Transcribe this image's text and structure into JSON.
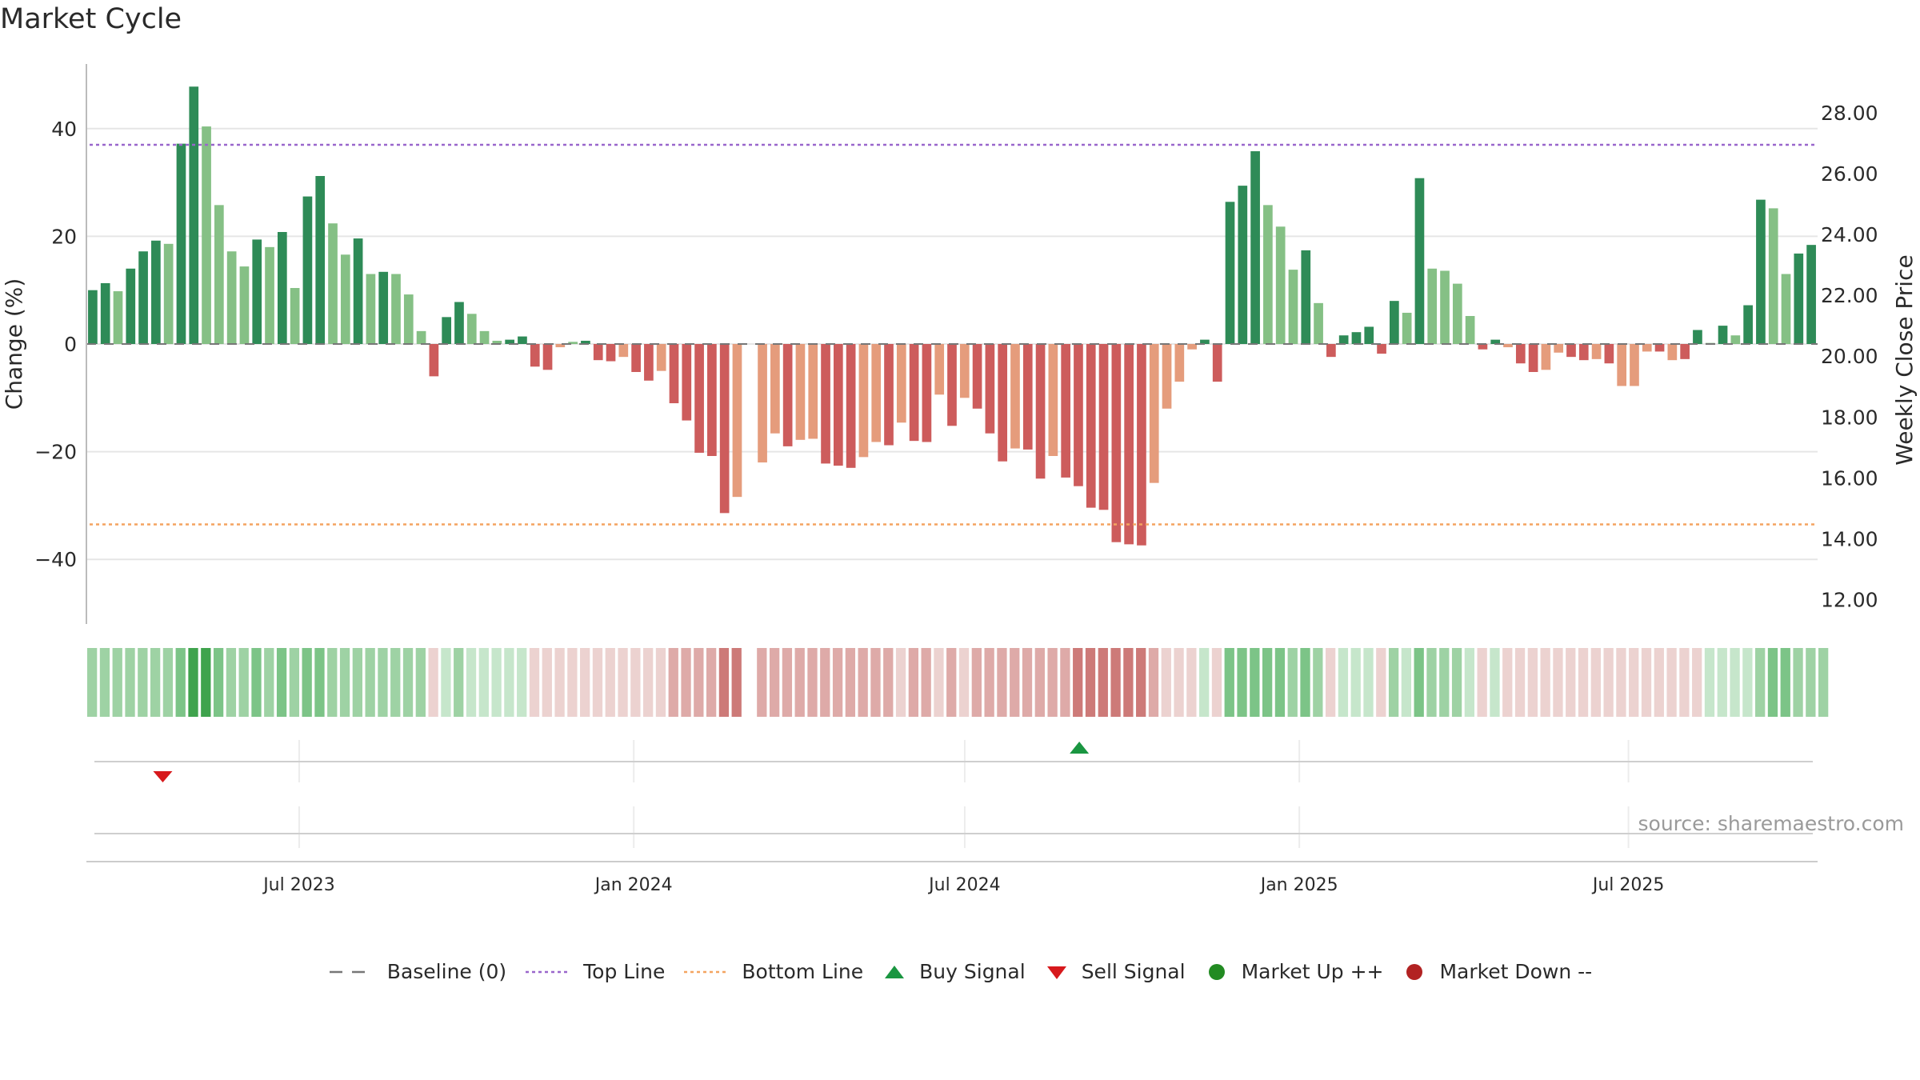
{
  "title": "Market Cycle",
  "source": "source: sharemaestro.com",
  "colors": {
    "up_strong": "#2e8b57",
    "up_light": "#85c085",
    "down_strong": "#cd5c5c",
    "down_light": "#e59c7c",
    "top_line": "#9966cc",
    "bottom_line": "#f4a460",
    "baseline": "#777777",
    "buy": "#1a9641",
    "sell": "#d7191c",
    "market_up": "#228b22",
    "market_down": "#b22222",
    "grid": "#e6e6e6",
    "axis": "#bbbbbb"
  },
  "legend": [
    {
      "label": "Baseline (0)",
      "icon": "dash-line",
      "color": "#777777"
    },
    {
      "label": "Top Line",
      "icon": "dotted-line",
      "color": "#9966cc"
    },
    {
      "label": "Bottom Line",
      "icon": "dotted-line",
      "color": "#f4a460"
    },
    {
      "label": "Buy Signal",
      "icon": "triangle-up",
      "color": "#1a9641"
    },
    {
      "label": "Sell Signal",
      "icon": "triangle-down",
      "color": "#d7191c"
    },
    {
      "label": "Market Up ++",
      "icon": "circle",
      "color": "#228b22"
    },
    {
      "label": "Market Down --",
      "icon": "circle",
      "color": "#b22222"
    }
  ],
  "chart_data": {
    "type": "bar",
    "ylabel": "Change (%)",
    "y2label": "Weekly Close Price",
    "ylim": [
      -52,
      52
    ],
    "yticks": [
      40,
      20,
      0,
      -20,
      -40
    ],
    "ytick_labels": [
      "40",
      "20",
      "0",
      "−20",
      "−40"
    ],
    "y2lim": [
      11.2,
      29.6
    ],
    "y2ticks": [
      28.0,
      26.0,
      24.0,
      22.0,
      20.0,
      18.0,
      16.0,
      14.0,
      12.0
    ],
    "y2tick_labels": [
      "28.00",
      "26.00",
      "24.00",
      "22.00",
      "20.00",
      "18.00",
      "16.00",
      "14.00",
      "12.00"
    ],
    "top_line": 37,
    "bottom_line": -33.5,
    "x_start": "2023-03-06",
    "x_end": "2025-10-13",
    "xticks": [
      {
        "date": "2023-07-01",
        "label": "Jul 2023"
      },
      {
        "date": "2024-01-01",
        "label": "Jan 2024"
      },
      {
        "date": "2024-07-01",
        "label": "Jul 2024"
      },
      {
        "date": "2025-01-01",
        "label": "Jan 2025"
      },
      {
        "date": "2025-07-01",
        "label": "Jul 2025"
      }
    ],
    "grid": true,
    "legend_position": "bottom",
    "series": [
      {
        "values": [
          10,
          11.3,
          9.8,
          14,
          17.2,
          19.2,
          18.6,
          37.2,
          47.8,
          40.4,
          25.8,
          17.2,
          14.4,
          19.4,
          18,
          20.8,
          10.4,
          27.4,
          31.2,
          22.4,
          16.6,
          19.6,
          13,
          13.4,
          13,
          9.2,
          2.4,
          -6,
          5,
          7.8,
          5.6,
          2.4,
          0.6,
          0.8,
          1.4,
          -4.2,
          -4.8,
          -0.6,
          0.4,
          0.6,
          -3,
          -3.2,
          -2.4,
          -5.2,
          -6.8,
          -5,
          -11,
          -14.2,
          -20.2,
          -20.8,
          -31.4,
          -28.4,
          null,
          -22,
          -16.6,
          -19,
          -17.8,
          -17.6,
          -22.2,
          -22.6,
          -23,
          -21,
          -18.2,
          -18.8,
          -14.6,
          -18,
          -18.2,
          -9.4,
          -15.2,
          -10,
          -12,
          -16.6,
          -21.8,
          -19.4,
          -19.6,
          -25,
          -20.8,
          -24.8,
          -26.4,
          -30.4,
          -30.8,
          -36.8,
          -37.2,
          -37.4,
          -25.8,
          -12,
          -7,
          -1,
          0.8,
          -7,
          26.4,
          29.4,
          35.8,
          25.8,
          21.8,
          13.8,
          17.4,
          7.6,
          -2.4,
          1.6,
          2.2,
          3.2,
          -1.8,
          8,
          5.8,
          30.8,
          14,
          13.6,
          11.2,
          5.2,
          -1,
          0.8,
          -0.6,
          -3.6,
          -5.2,
          -4.8,
          -1.6,
          -2.4,
          -3,
          -2.8,
          -3.6,
          -7.8,
          -7.8,
          -1.4,
          -1.4,
          -3,
          -2.8,
          2.6,
          0.2,
          3.4,
          1.6,
          7.2,
          26.8,
          25.2,
          13,
          16.8,
          18.4
        ],
        "shades": [
          "s",
          "s",
          "l",
          "s",
          "s",
          "s",
          "l",
          "s",
          "s",
          "l",
          "l",
          "l",
          "l",
          "s",
          "l",
          "s",
          "l",
          "s",
          "s",
          "l",
          "l",
          "s",
          "l",
          "s",
          "l",
          "l",
          "l",
          "s",
          "s",
          "s",
          "l",
          "l",
          "l",
          "s",
          "s",
          "s",
          "s",
          "l",
          "l",
          "s",
          "s",
          "s",
          "l",
          "s",
          "s",
          "l",
          "s",
          "s",
          "s",
          "s",
          "s",
          "l",
          "n",
          "l",
          "l",
          "s",
          "l",
          "l",
          "s",
          "s",
          "s",
          "l",
          "l",
          "s",
          "l",
          "s",
          "s",
          "l",
          "s",
          "l",
          "s",
          "s",
          "s",
          "l",
          "s",
          "s",
          "l",
          "s",
          "s",
          "s",
          "s",
          "s",
          "s",
          "s",
          "l",
          "l",
          "l",
          "l",
          "s",
          "s",
          "s",
          "s",
          "s",
          "l",
          "l",
          "l",
          "s",
          "l",
          "s",
          "s",
          "s",
          "s",
          "s",
          "s",
          "l",
          "s",
          "l",
          "l",
          "l",
          "l",
          "s",
          "s",
          "l",
          "s",
          "s",
          "l",
          "l",
          "s",
          "s",
          "l",
          "s",
          "l",
          "l",
          "l",
          "s",
          "l",
          "s",
          "s",
          "l",
          "s",
          "l",
          "s",
          "s",
          "l",
          "l",
          "s",
          "s"
        ]
      }
    ],
    "heat_strip": [
      1,
      1,
      1,
      1,
      1,
      1,
      1,
      2,
      3,
      3,
      2,
      1,
      1,
      2,
      1,
      2,
      1,
      2,
      2,
      1,
      1,
      1,
      1,
      1,
      1,
      1,
      1,
      -1,
      0,
      1,
      0,
      0,
      0,
      0,
      0,
      -1,
      -1,
      -1,
      -1,
      -1,
      -1,
      -1,
      -1,
      -1,
      -1,
      -1,
      -2,
      -2,
      -2,
      -2,
      -3,
      -3,
      null,
      -2,
      -2,
      -2,
      -2,
      -2,
      -2,
      -2,
      -2,
      -2,
      -2,
      -2,
      -1,
      -2,
      -2,
      -1,
      -2,
      -1,
      -2,
      -2,
      -2,
      -2,
      -2,
      -2,
      -2,
      -2,
      -3,
      -3,
      -3,
      -3,
      -3,
      -3,
      -2,
      -1,
      -1,
      -1,
      0,
      -1,
      2,
      2,
      2,
      2,
      2,
      1,
      2,
      1,
      -1,
      0,
      0,
      0,
      -1,
      1,
      0,
      2,
      1,
      1,
      1,
      0,
      -1,
      0,
      -1,
      -1,
      -1,
      -1,
      -1,
      -1,
      -1,
      -1,
      -1,
      -1,
      -1,
      -1,
      -1,
      -1,
      -1,
      -1,
      0,
      0,
      0,
      0,
      1,
      2,
      2,
      1,
      1,
      1
    ],
    "sell_signals": [
      "2023-04-17"
    ],
    "buy_signals": [
      "2024-09-02"
    ]
  }
}
